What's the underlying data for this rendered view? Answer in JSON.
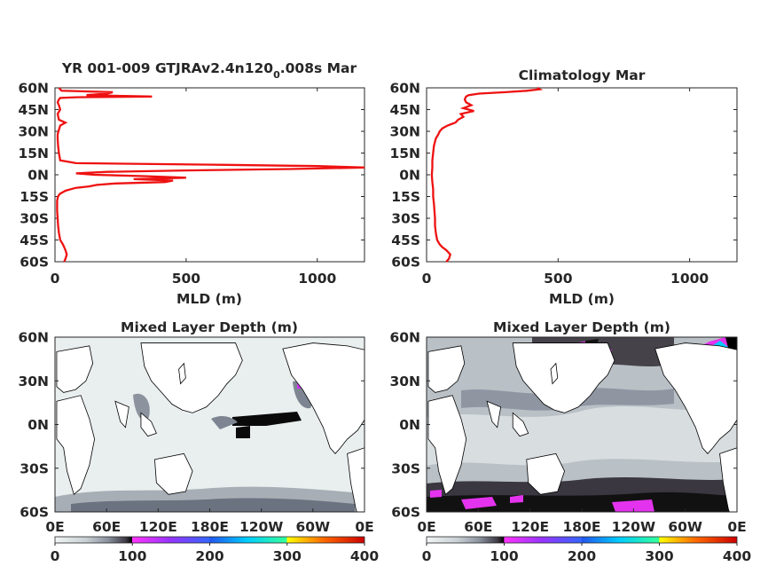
{
  "figure": {
    "title_top_left_main": "YR 001-009 GTJRAv2.4n120",
    "title_top_left_sub": "0",
    "title_top_left_tail": ".008s Mar",
    "title_top_right": "Climatology Mar",
    "title_bottom_left": "Mixed Layer Depth (m)",
    "title_bottom_right": "Mixed Layer Depth (m)",
    "colormap": [
      "#f2f5f5",
      "#c9d0d4",
      "#8b93a0",
      "#3b3742",
      "#000000",
      "#ff33ff",
      "#9933ff",
      "#3366ff",
      "#00ccff",
      "#33ff99",
      "#ffff00",
      "#ff6600",
      "#cc0000"
    ]
  },
  "chart_data": [
    {
      "type": "line",
      "panel": "top-left",
      "title": "YR 001-009 GTJRAv2.4n120_0.008s Mar",
      "xlabel": "MLD (m)",
      "ylabel": "",
      "xlim": [
        0,
        1180
      ],
      "ylim": [
        -60,
        60
      ],
      "xticks": [
        0,
        500,
        1000
      ],
      "xtick_labels": [
        "0",
        "500",
        "1000"
      ],
      "yticks": [
        60,
        45,
        30,
        15,
        0,
        -15,
        -30,
        -45,
        -60
      ],
      "ytick_labels": [
        "60N",
        "45N",
        "30N",
        "15N",
        "0N",
        "15S",
        "30S",
        "45S",
        "60S"
      ],
      "series": [
        {
          "color": "#ee1111",
          "y": [
            60,
            58,
            57,
            56,
            55,
            54,
            53.5,
            53,
            52,
            50,
            48,
            45,
            42,
            38,
            36,
            34,
            31,
            28,
            25,
            20,
            15,
            10,
            8,
            7,
            6,
            5,
            4,
            3,
            2,
            1,
            0,
            -1,
            -2,
            -3,
            -4,
            -5,
            -6,
            -7,
            -8,
            -9,
            -10,
            -11,
            -12,
            -13,
            -14,
            -15,
            -16,
            -18,
            -20,
            -25,
            -30,
            -35,
            -40,
            -45,
            -48,
            -50,
            -52,
            -55,
            -58,
            -60
          ],
          "x": [
            15,
            25,
            220,
            200,
            120,
            370,
            80,
            20,
            15,
            10,
            15,
            20,
            10,
            15,
            40,
            20,
            15,
            10,
            10,
            12,
            15,
            20,
            80,
            600,
            1000,
            1180,
            900,
            500,
            200,
            80,
            150,
            350,
            500,
            300,
            450,
            420,
            230,
            160,
            130,
            80,
            60,
            40,
            30,
            20,
            15,
            12,
            10,
            8,
            8,
            8,
            10,
            12,
            15,
            20,
            30,
            35,
            40,
            45,
            40,
            35
          ]
        }
      ]
    },
    {
      "type": "line",
      "panel": "top-right",
      "title": "Climatology Mar",
      "xlabel": "MLD (m)",
      "ylabel": "",
      "xlim": [
        0,
        1180
      ],
      "ylim": [
        -60,
        60
      ],
      "xticks": [
        0,
        500,
        1000
      ],
      "xtick_labels": [
        "0",
        "500",
        "1000"
      ],
      "yticks": [
        60,
        45,
        30,
        15,
        0,
        -15,
        -30,
        -45,
        -60
      ],
      "ytick_labels": [
        "60N",
        "45N",
        "30N",
        "15N",
        "0N",
        "15S",
        "30S",
        "45S",
        "60S"
      ],
      "series": [
        {
          "color": "#ee1111",
          "y": [
            60,
            59,
            58,
            57,
            56,
            55,
            54,
            52,
            50,
            48,
            46,
            44,
            42,
            40,
            38,
            36,
            34,
            32,
            30,
            28,
            25,
            20,
            15,
            10,
            5,
            0,
            -5,
            -10,
            -15,
            -20,
            -25,
            -30,
            -35,
            -40,
            -45,
            -48,
            -50,
            -52,
            -55,
            -58,
            -60
          ],
          "x": [
            420,
            430,
            380,
            300,
            200,
            160,
            150,
            145,
            150,
            170,
            140,
            180,
            130,
            140,
            120,
            110,
            80,
            60,
            50,
            45,
            35,
            28,
            25,
            22,
            22,
            20,
            22,
            25,
            25,
            28,
            30,
            32,
            32,
            35,
            40,
            50,
            60,
            75,
            90,
            85,
            75
          ]
        }
      ]
    },
    {
      "type": "heatmap",
      "panel": "bottom-left",
      "title": "Mixed Layer Depth (m)",
      "xlabel": "",
      "ylabel": "",
      "xlim": [
        0,
        360
      ],
      "ylim": [
        -60,
        60
      ],
      "xtick_labels": [
        "0E",
        "60E",
        "120E",
        "180E",
        "120W",
        "60W",
        "0E"
      ],
      "ytick_labels": [
        "60N",
        "30N",
        "0N",
        "30S",
        "60S"
      ],
      "colorbar": {
        "range": [
          0,
          400
        ],
        "tick_labels": [
          "0",
          "100",
          "200",
          "300",
          "400"
        ]
      }
    },
    {
      "type": "heatmap",
      "panel": "bottom-right",
      "title": "Mixed Layer Depth (m)",
      "xlabel": "",
      "ylabel": "",
      "xlim": [
        0,
        360
      ],
      "ylim": [
        -60,
        60
      ],
      "xtick_labels": [
        "0E",
        "60E",
        "120E",
        "180E",
        "120W",
        "60W",
        "0E"
      ],
      "ytick_labels": [
        "60N",
        "30N",
        "0N",
        "30S",
        "60S"
      ],
      "colorbar": {
        "range": [
          0,
          400
        ],
        "tick_labels": [
          "0",
          "100",
          "200",
          "300",
          "400"
        ]
      }
    }
  ]
}
